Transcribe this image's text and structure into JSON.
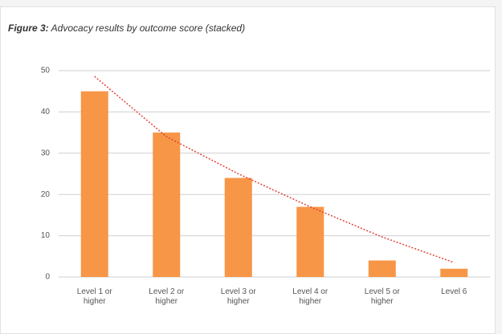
{
  "chart_data": {
    "type": "bar",
    "label": "Figure 3:",
    "title": "Advocacy results by outcome score (stacked)",
    "categories": [
      "Level 1 or higher",
      "Level 2 or higher",
      "Level 3 or higher",
      "Level 4 or higher",
      "Level 5 or higher",
      "Level 6"
    ],
    "values": [
      45,
      35,
      24,
      17,
      4,
      2
    ],
    "color": "#f79646",
    "trendline": {
      "color": "#e0453a",
      "values": [
        48.6,
        34,
        25,
        17,
        9.7,
        3.5
      ]
    },
    "ylim": [
      0,
      50
    ],
    "yticks": [
      0,
      10,
      20,
      30,
      40,
      50
    ],
    "grid": true
  }
}
